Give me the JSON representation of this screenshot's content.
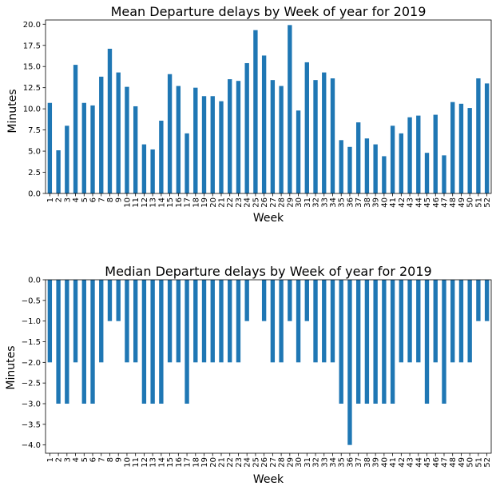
{
  "chart_data": [
    {
      "type": "bar",
      "title": "Mean Departure delays by Week of year for 2019",
      "xlabel": "Week",
      "ylabel": "Minutes",
      "ylim": [
        0,
        20.5
      ],
      "yticks": [
        "0.0",
        "2.5",
        "5.0",
        "7.5",
        "10.0",
        "12.5",
        "15.0",
        "17.5",
        "20.0"
      ],
      "grid": false,
      "categories": [
        "1",
        "2",
        "3",
        "4",
        "5",
        "6",
        "7",
        "8",
        "9",
        "10",
        "11",
        "12",
        "13",
        "14",
        "15",
        "16",
        "17",
        "18",
        "19",
        "20",
        "21",
        "22",
        "23",
        "24",
        "25",
        "26",
        "27",
        "28",
        "29",
        "30",
        "31",
        "32",
        "33",
        "34",
        "35",
        "36",
        "37",
        "38",
        "39",
        "40",
        "41",
        "42",
        "43",
        "44",
        "45",
        "46",
        "47",
        "48",
        "49",
        "50",
        "51",
        "52"
      ],
      "values": [
        10.7,
        5.1,
        8.0,
        15.2,
        10.7,
        10.4,
        13.8,
        17.1,
        14.3,
        12.6,
        10.3,
        5.8,
        5.2,
        8.6,
        14.1,
        12.7,
        7.1,
        12.5,
        11.5,
        11.5,
        10.9,
        13.5,
        13.3,
        15.4,
        19.3,
        16.3,
        13.4,
        12.7,
        19.9,
        9.8,
        15.5,
        13.4,
        14.3,
        13.6,
        6.3,
        5.5,
        8.4,
        6.5,
        5.8,
        4.4,
        8.0,
        7.1,
        9.0,
        9.2,
        4.8,
        9.3,
        4.5,
        10.8,
        10.6,
        10.1,
        13.6,
        13.0
      ],
      "color": "#1f77b4"
    },
    {
      "type": "bar",
      "title": "Median Departure delays by Week of year for 2019",
      "xlabel": "Week",
      "ylabel": "Minutes",
      "ylim": [
        -4.2,
        0
      ],
      "yticks": [
        "0.0",
        "−0.5",
        "−1.0",
        "−1.5",
        "−2.0",
        "−2.5",
        "−3.0",
        "−3.5",
        "−4.0"
      ],
      "grid": false,
      "categories": [
        "1",
        "2",
        "3",
        "4",
        "5",
        "6",
        "7",
        "8",
        "9",
        "10",
        "11",
        "12",
        "13",
        "14",
        "15",
        "16",
        "17",
        "18",
        "19",
        "20",
        "21",
        "22",
        "23",
        "24",
        "25",
        "26",
        "27",
        "28",
        "29",
        "30",
        "31",
        "32",
        "33",
        "34",
        "35",
        "36",
        "37",
        "38",
        "39",
        "40",
        "41",
        "42",
        "43",
        "44",
        "45",
        "46",
        "47",
        "48",
        "49",
        "50",
        "51",
        "52"
      ],
      "values": [
        -2,
        -3,
        -3,
        -2,
        -3,
        -3,
        -2,
        -1,
        -1,
        -2,
        -2,
        -3,
        -3,
        -3,
        -2,
        -2,
        -3,
        -2,
        -2,
        -2,
        -2,
        -2,
        -2,
        -1,
        0,
        -1,
        -2,
        -2,
        -1,
        -2,
        -1,
        -2,
        -2,
        -2,
        -3,
        -4,
        -3,
        -3,
        -3,
        -3,
        -3,
        -2,
        -2,
        -2,
        -3,
        -2,
        -3,
        -2,
        -2,
        -2,
        -1,
        -1
      ],
      "color": "#1f77b4"
    }
  ]
}
